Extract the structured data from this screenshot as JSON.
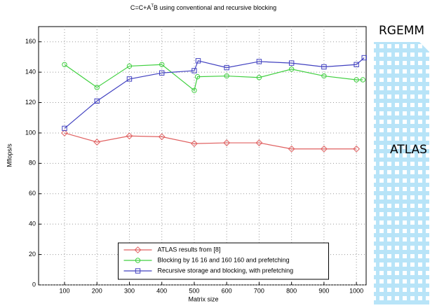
{
  "chart_data": {
    "type": "line",
    "title": [
      "C=C+A",
      "T",
      "B using conventional and recursive blocking"
    ],
    "x_label": "Matrix size",
    "y_label": "Mflops/s",
    "xlim": [
      20,
      1030
    ],
    "ylim": [
      0,
      170
    ],
    "xticks": [
      100,
      200,
      300,
      400,
      500,
      600,
      700,
      800,
      900,
      1000
    ],
    "yticks": [
      0,
      20,
      40,
      60,
      80,
      100,
      120,
      140,
      160
    ],
    "grid": true,
    "legend": "lower center",
    "series": [
      {
        "name": "ATLAS results from [8]",
        "color": "#e06060",
        "marker": "diamond",
        "x": [
          100,
          200,
          300,
          400,
          500,
          600,
          700,
          800,
          900,
          1000
        ],
        "values": [
          100,
          94,
          98,
          97.5,
          93,
          93.5,
          93.5,
          89.5,
          89.5,
          89.5
        ]
      },
      {
        "name": "Blocking by 16  16 and 160  160 and prefetching",
        "color": "#40d040",
        "marker": "circle",
        "x": [
          100,
          200,
          300,
          400,
          500,
          510,
          600,
          700,
          800,
          900,
          1000,
          1020
        ],
        "values": [
          145,
          130,
          144,
          145,
          128,
          137,
          137.5,
          136.5,
          142,
          137.5,
          135,
          135
        ]
      },
      {
        "name": "Recursive storage and blocking, with prefetching",
        "color": "#4040c0",
        "marker": "square",
        "x": [
          100,
          200,
          300,
          400,
          500,
          512,
          600,
          700,
          800,
          900,
          1000,
          1024
        ],
        "values": [
          103,
          121,
          135.5,
          139.5,
          141,
          147.5,
          143,
          147,
          146,
          143.5,
          145,
          149.5
        ]
      }
    ],
    "annotations": [
      {
        "text": "RGEMM",
        "color": "#2f5fd0"
      },
      {
        "text": "ATLAS",
        "color": "#ff2020"
      }
    ]
  }
}
